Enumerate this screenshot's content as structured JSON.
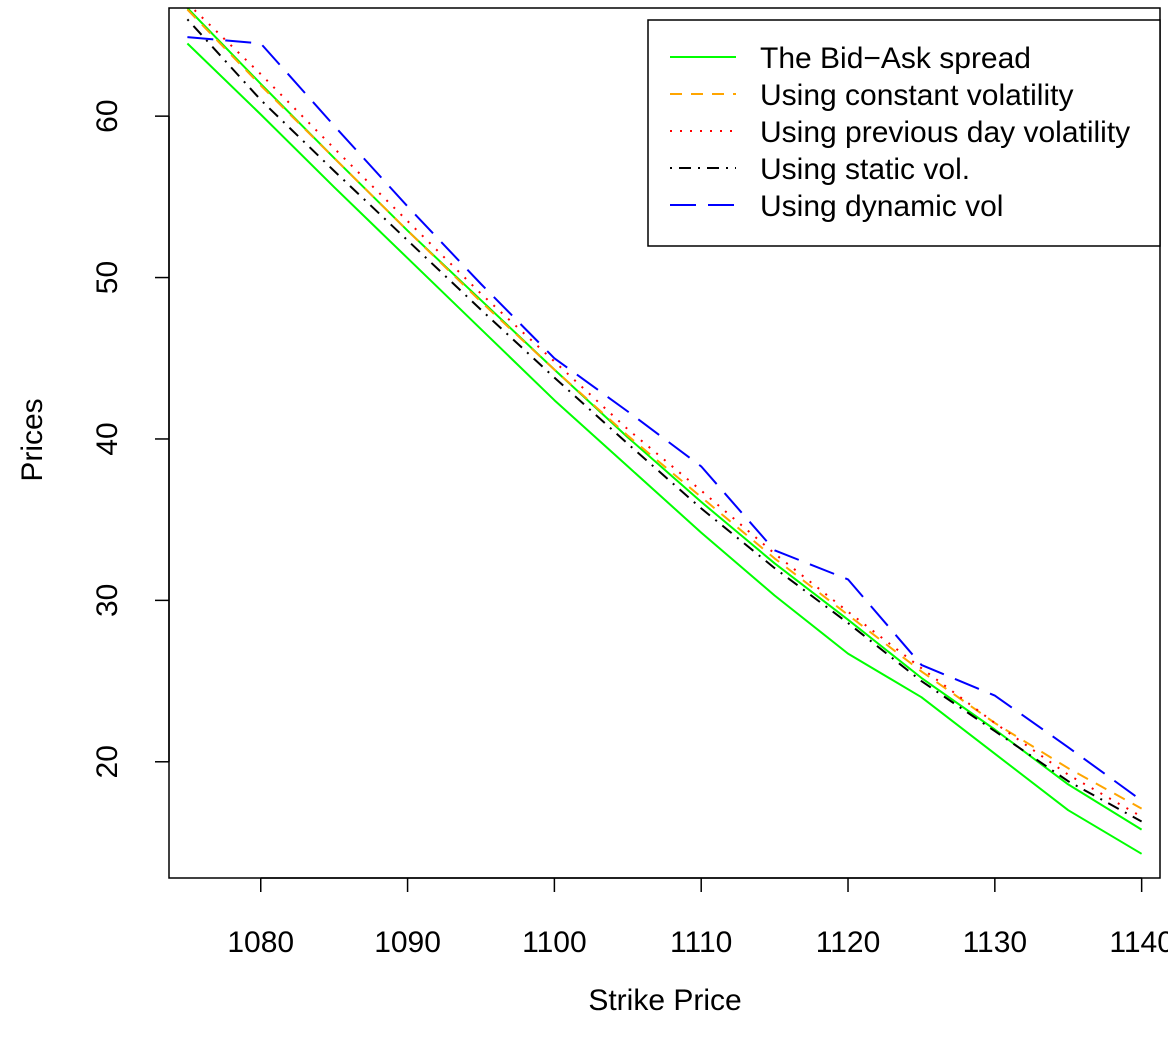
{
  "chart_data": {
    "type": "line",
    "title": "",
    "xlabel": "Strike Price",
    "ylabel": "Prices",
    "xlim": [
      1073.75,
      1141.25
    ],
    "ylim": [
      12.8,
      66.7
    ],
    "x_ticks": [
      1080,
      1090,
      1100,
      1110,
      1120,
      1130,
      1140
    ],
    "y_ticks": [
      20,
      30,
      40,
      50,
      60
    ],
    "grid": false,
    "legend_position": "top-right",
    "x": [
      1075,
      1080,
      1085,
      1090,
      1095,
      1100,
      1105,
      1110,
      1115,
      1120,
      1125,
      1130,
      1135,
      1140
    ],
    "series": [
      {
        "name": "The Bid−Ask spread",
        "group": "bid",
        "color": "#00ff00",
        "dash": "solid",
        "values": [
          64.5,
          60.1,
          55.6,
          51.2,
          46.8,
          42.4,
          38.3,
          34.2,
          30.3,
          26.7,
          24.0,
          20.5,
          17.0,
          14.3
        ]
      },
      {
        "name": "",
        "group": "ask",
        "color": "#00ff00",
        "dash": "solid",
        "values": [
          66.7,
          62.0,
          57.4,
          52.9,
          48.6,
          44.3,
          40.1,
          36.1,
          32.3,
          28.8,
          25.2,
          22.0,
          18.6,
          15.8
        ]
      },
      {
        "name": "Using constant volatility",
        "group": "const",
        "color": "#ffa500",
        "dash": "dashed",
        "values": [
          66.6,
          61.9,
          57.4,
          52.9,
          48.5,
          44.3,
          40.2,
          36.4,
          32.6,
          29.1,
          25.6,
          22.4,
          19.6,
          17.1
        ]
      },
      {
        "name": "Using previous day volatility",
        "group": "prev",
        "color": "#ff0000",
        "dash": "dotted",
        "values": [
          67.0,
          62.6,
          58.0,
          53.5,
          49.0,
          44.8,
          40.6,
          36.8,
          32.9,
          29.3,
          25.8,
          22.4,
          19.2,
          16.6
        ]
      },
      {
        "name": "Using static vol.",
        "group": "static",
        "color": "#000000",
        "dash": "dotdash",
        "values": [
          66.0,
          61.0,
          56.6,
          52.3,
          48.0,
          43.8,
          39.7,
          35.7,
          32.0,
          28.6,
          25.0,
          21.9,
          18.8,
          16.3
        ]
      },
      {
        "name": "Using dynamic vol",
        "group": "dynamic",
        "color": "#0000ff",
        "dash": "longdash",
        "values": [
          64.9,
          64.5,
          59.4,
          54.4,
          49.6,
          45.0,
          41.7,
          38.3,
          33.1,
          31.3,
          26.0,
          24.1,
          20.9,
          17.6
        ]
      }
    ]
  }
}
